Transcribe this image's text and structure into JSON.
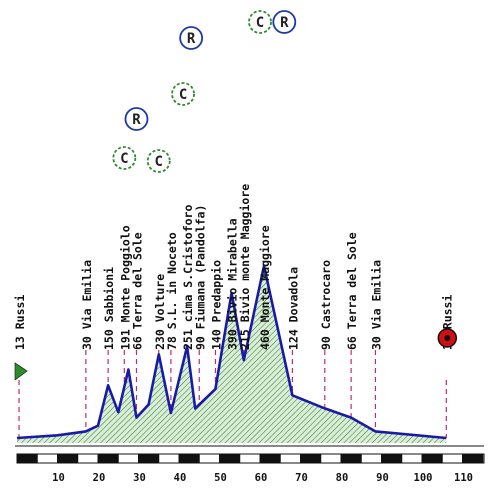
{
  "chart_data": {
    "type": "area",
    "title": "",
    "xlabel": "",
    "ylabel": "",
    "x_ticks": [
      10,
      20,
      30,
      40,
      50,
      60,
      70,
      80,
      90,
      100,
      110
    ],
    "xlim": [
      0,
      116
    ],
    "profile": [
      {
        "km": 0,
        "alt": 13
      },
      {
        "km": 10,
        "alt": 20
      },
      {
        "km": 17,
        "alt": 30
      },
      {
        "km": 20,
        "alt": 45
      },
      {
        "km": 22.5,
        "alt": 150
      },
      {
        "km": 25,
        "alt": 80
      },
      {
        "km": 27.5,
        "alt": 191
      },
      {
        "km": 29.5,
        "alt": 66
      },
      {
        "km": 32.5,
        "alt": 100
      },
      {
        "km": 35,
        "alt": 230
      },
      {
        "km": 38,
        "alt": 78
      },
      {
        "km": 42,
        "alt": 251
      },
      {
        "km": 44,
        "alt": 90
      },
      {
        "km": 49,
        "alt": 140
      },
      {
        "km": 53,
        "alt": 390
      },
      {
        "km": 56,
        "alt": 215
      },
      {
        "km": 61,
        "alt": 460
      },
      {
        "km": 68,
        "alt": 124
      },
      {
        "km": 76,
        "alt": 90
      },
      {
        "km": 82.5,
        "alt": 66
      },
      {
        "km": 88.5,
        "alt": 30
      },
      {
        "km": 106,
        "alt": 13
      }
    ],
    "colors": {
      "outline": "#1a1aa8",
      "fill": "#d9efd6",
      "hatch": "#3d7a3d",
      "marker": "#c02878",
      "climb": "#2e8b2e",
      "refresh": "#1a3aa8",
      "finish": "#d01010"
    }
  },
  "labels": [
    {
      "text": "13 Russi",
      "km": 0.5
    },
    {
      "text": "30 Via Emilia",
      "km": 17
    },
    {
      "text": "150 Sabbioni",
      "km": 22.5
    },
    {
      "text": "191 Monte Poggiolo",
      "km": 26.5
    },
    {
      "text": "66 Terra del Sole",
      "km": 29.5
    },
    {
      "text": "230 Volture",
      "km": 35
    },
    {
      "text": "78 S.L. in Noceto",
      "km": 38
    },
    {
      "text": "251 cima S.Cristoforo",
      "km": 42
    },
    {
      "text": "90 Fiumana (Pandolfa)",
      "km": 45
    },
    {
      "text": "140 Predappio",
      "km": 49
    },
    {
      "text": "390 Bivio Mirabella",
      "km": 53
    },
    {
      "text": "215 Bivio monte Maggiore",
      "km": 56
    },
    {
      "text": "460 Monte Maggiore",
      "km": 61
    },
    {
      "text": "124 Dovadola",
      "km": 68
    },
    {
      "text": "90 Castrocaro",
      "km": 76
    },
    {
      "text": "66 Terra del Sole",
      "km": 82.5
    },
    {
      "text": "30 Via Emilia",
      "km": 88.5
    },
    {
      "text": "13 Russi",
      "km": 106
    }
  ],
  "markers": {
    "climb_letter": "C",
    "refresh_letter": "R",
    "climbs_km": [
      26.5,
      35,
      41,
      60
    ],
    "refresh_km": [
      29.5,
      43,
      66
    ]
  }
}
